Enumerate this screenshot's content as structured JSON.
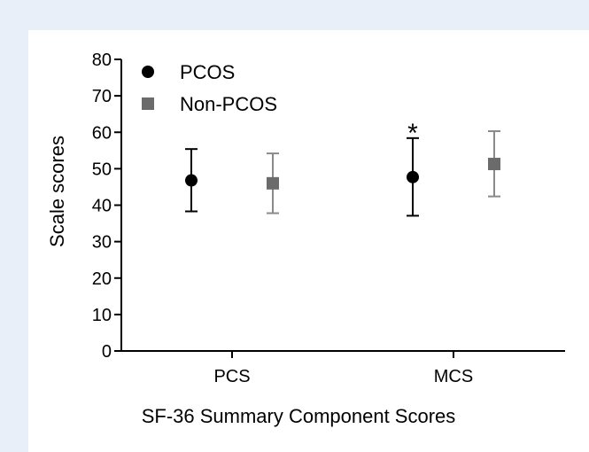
{
  "chart_data": {
    "type": "scatter",
    "xlabel": "SF-36 Summary Component Scores",
    "ylabel": "Scale scores",
    "categories": [
      "PCS",
      "MCS"
    ],
    "ylim": [
      0,
      80
    ],
    "yticks": [
      0,
      10,
      20,
      30,
      40,
      50,
      60,
      70,
      80
    ],
    "legend_position": "top-left",
    "series": [
      {
        "name": "PCOS",
        "marker": "circle",
        "color": "#000000",
        "values": [
          46.8,
          47.7
        ],
        "lower": [
          38.3,
          37.1
        ],
        "upper": [
          55.4,
          58.4
        ]
      },
      {
        "name": "Non-PCOS",
        "marker": "square",
        "color": "#6b6b6b",
        "values": [
          46.0,
          51.3
        ],
        "lower": [
          37.8,
          42.4
        ],
        "upper": [
          54.2,
          60.3
        ]
      }
    ],
    "annotations": [
      {
        "text": "*",
        "category": "MCS",
        "series": "PCOS"
      }
    ]
  }
}
